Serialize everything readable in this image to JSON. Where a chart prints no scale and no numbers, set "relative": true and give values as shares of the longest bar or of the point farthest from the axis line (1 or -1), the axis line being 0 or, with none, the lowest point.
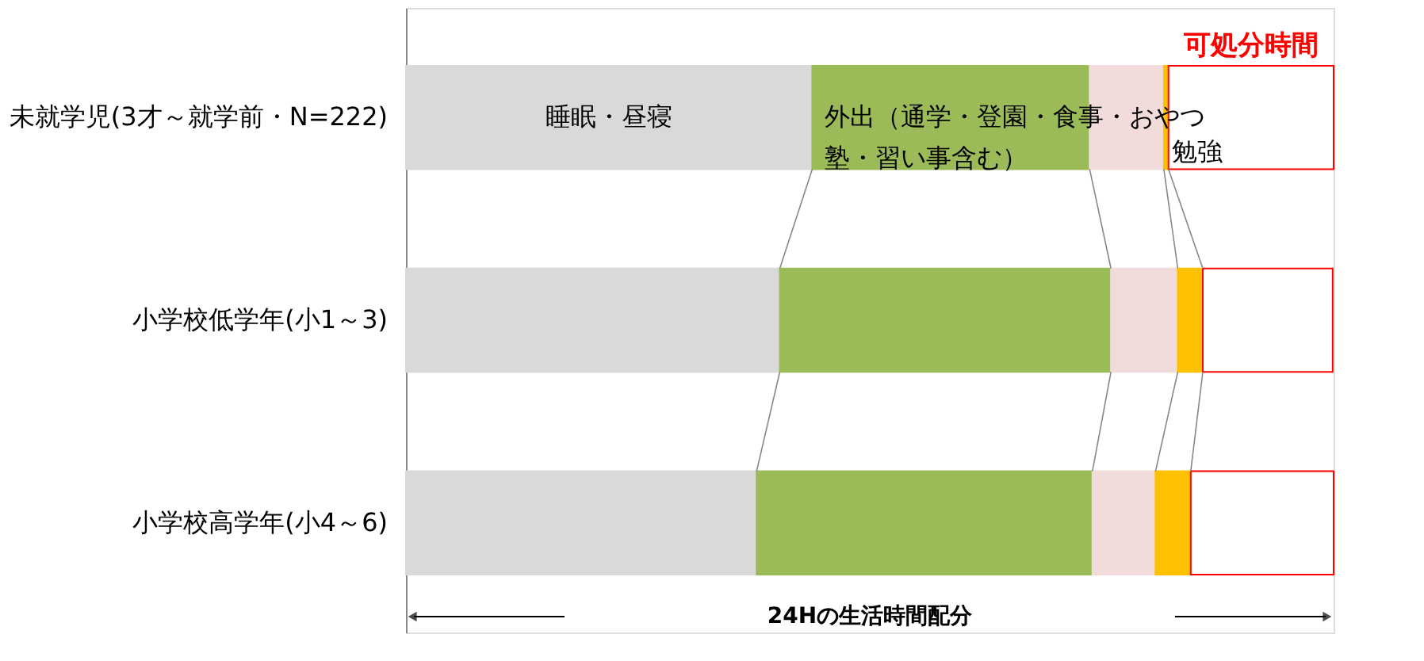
{
  "chart_data": {
    "type": "bar",
    "orientation": "horizontal",
    "stacked": true,
    "relative": true,
    "grid": false,
    "xlabel": "24Hの生活時間配分",
    "categories": [
      "未就学児(3才～就学前・N=222)",
      "小学校低学年(小1～3)",
      "小学校高学年(小4～6)"
    ],
    "series": [
      {
        "name": "睡眠・昼寝",
        "color": "#d9d9d9",
        "values": [
          0.438,
          0.403,
          0.378
        ]
      },
      {
        "name": "外出（通学・登園・食事・おやつ塾・習い事含む）",
        "color": "#9bbb59",
        "values": [
          0.299,
          0.357,
          0.362
        ]
      },
      {
        "color": "#f2dcdb",
        "values": [
          0.08,
          0.072,
          0.068
        ]
      },
      {
        "name": "勉強",
        "color": "#ffc000",
        "values": [
          0.005,
          0.027,
          0.038
        ]
      },
      {
        "name": "可処分時間",
        "color": "#ff0000",
        "values": [
          0.178,
          0.14,
          0.154
        ]
      }
    ]
  }
}
